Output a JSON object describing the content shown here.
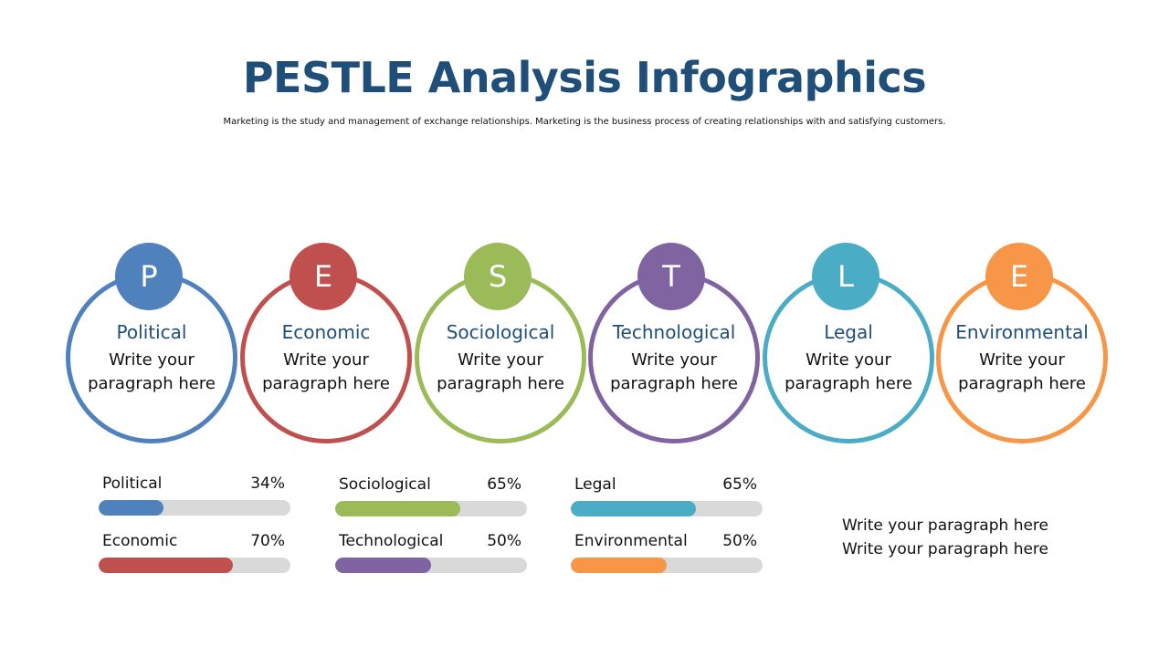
{
  "title": "PESTLE Analysis Infographics",
  "subtitle": "Marketing is the study and management of exchange relationships. Marketing is the business process of creating relationships with and satisfying customers.",
  "circles": [
    {
      "letter": "P",
      "name": "Political",
      "text": "Write your paragraph here",
      "color": "#4F81BD"
    },
    {
      "letter": "E",
      "name": "Economic",
      "text": "Write your paragraph here",
      "color": "#C0504D"
    },
    {
      "letter": "S",
      "name": "Sociological",
      "text": "Write your paragraph here",
      "color": "#9BBB59"
    },
    {
      "letter": "T",
      "name": "Technological",
      "text": "Write your paragraph here",
      "color": "#8064A2"
    },
    {
      "letter": "L",
      "name": "Legal",
      "text": "Write your paragraph here",
      "color": "#4BACC6"
    },
    {
      "letter": "E",
      "name": "Environmental",
      "text": "Write your paragraph here",
      "color": "#F79646"
    }
  ],
  "bars": [
    {
      "label": "Political",
      "percent_label": "34%",
      "value": 34,
      "color": "#4F81BD"
    },
    {
      "label": "Economic",
      "percent_label": "70%",
      "value": 70,
      "color": "#C0504D"
    },
    {
      "label": "Sociological",
      "percent_label": "65%",
      "value": 65,
      "color": "#9BBB59"
    },
    {
      "label": "Technological",
      "percent_label": "50%",
      "value": 50,
      "color": "#8064A2"
    },
    {
      "label": "Legal",
      "percent_label": "65%",
      "value": 65,
      "color": "#4BACC6"
    },
    {
      "label": "Environmental",
      "percent_label": "50%",
      "value": 50,
      "color": "#F79646"
    }
  ],
  "side_note": {
    "line1": "Write your paragraph here",
    "line2": "Write your paragraph here"
  }
}
